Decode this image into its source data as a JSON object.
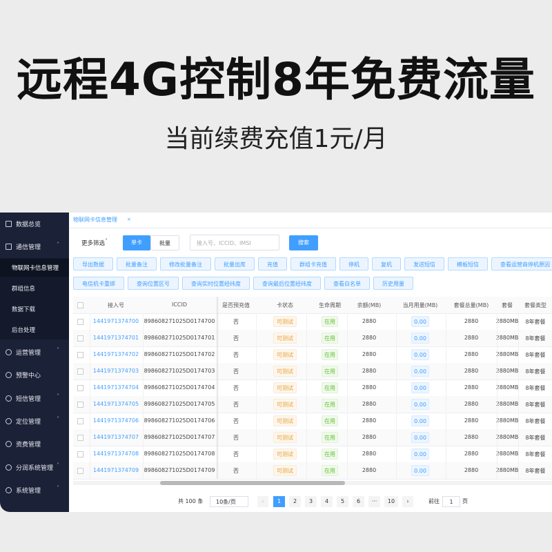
{
  "headline": "远程4G控制8年免费流量",
  "subheadline": "当前续费充值1元/月",
  "sidebar": {
    "top": [
      "数据总览",
      "通信管理"
    ],
    "submenu": [
      "物联网卡信息管理",
      "群组信息",
      "数据下载",
      "后台处理"
    ],
    "bottom": [
      "运营管理",
      "预警中心",
      "短信管理",
      "定位管理",
      "资费管理",
      "分润系统管理",
      "系统管理"
    ]
  },
  "tab": "物联网卡信息管理",
  "filters": {
    "more": "更多筛选",
    "modes": [
      "单卡",
      "批量"
    ],
    "placeholder": "接入号、ICCID、IMSI",
    "search": "搜索"
  },
  "toolbar": {
    "row1": [
      "导出数据",
      "批量备注",
      "修改批量备注",
      "批量出库",
      "充值",
      "群组卡充值",
      "停机",
      "复机",
      "发送短信",
      "模板短信",
      "查看运营商停机原因"
    ],
    "row2": [
      "电信机卡重绑",
      "查询位置区号",
      "查询实时位置经纬度",
      "查询最后位置经纬度",
      "查看白名单",
      "历史用量"
    ]
  },
  "table": {
    "headers": [
      "接入号",
      "ICCID",
      "是否预充值",
      "卡状态",
      "生命周期",
      "余额(MB)",
      "当月用量(MB)",
      "套餐总量(MB)",
      "套餐",
      "套餐类型"
    ],
    "rows": [
      [
        "1441971374700",
        "898608271025D0174700",
        "否",
        "可测试",
        "在用",
        "2880",
        "0.00",
        "2880",
        "2880MB",
        "8年套餐"
      ],
      [
        "1441971374701",
        "898608271025D0174701",
        "否",
        "可测试",
        "在用",
        "2880",
        "0.00",
        "2880",
        "2880MB",
        "8年套餐"
      ],
      [
        "1441971374702",
        "898608271025D0174702",
        "否",
        "可测试",
        "在用",
        "2880",
        "0.00",
        "2880",
        "2880MB",
        "8年套餐"
      ],
      [
        "1441971374703",
        "898608271025D0174703",
        "否",
        "可测试",
        "在用",
        "2880",
        "0.00",
        "2880",
        "2880MB",
        "8年套餐"
      ],
      [
        "1441971374704",
        "898608271025D0174704",
        "否",
        "可测试",
        "在用",
        "2880",
        "0.00",
        "2880",
        "2880MB",
        "8年套餐"
      ],
      [
        "1441971374705",
        "898608271025D0174705",
        "否",
        "可测试",
        "在用",
        "2880",
        "0.00",
        "2880",
        "2880MB",
        "8年套餐"
      ],
      [
        "1441971374706",
        "898608271025D0174706",
        "否",
        "可测试",
        "在用",
        "2880",
        "0.00",
        "2880",
        "2880MB",
        "8年套餐"
      ],
      [
        "1441971374707",
        "898608271025D0174707",
        "否",
        "可测试",
        "在用",
        "2880",
        "0.00",
        "2880",
        "2880MB",
        "8年套餐"
      ],
      [
        "1441971374708",
        "898608271025D0174708",
        "否",
        "可测试",
        "在用",
        "2880",
        "0.00",
        "2880",
        "2880MB",
        "8年套餐"
      ],
      [
        "1441971374709",
        "898608271025D0174709",
        "否",
        "可测试",
        "在用",
        "2880",
        "0.00",
        "2880",
        "2880MB",
        "8年套餐"
      ]
    ]
  },
  "pagination": {
    "total": "共 100 条",
    "page_size": "10条/页",
    "pages": [
      "1",
      "2",
      "3",
      "4",
      "5",
      "6",
      "···",
      "10"
    ],
    "goto": "前往",
    "goto_value": "1",
    "unit": "页"
  }
}
